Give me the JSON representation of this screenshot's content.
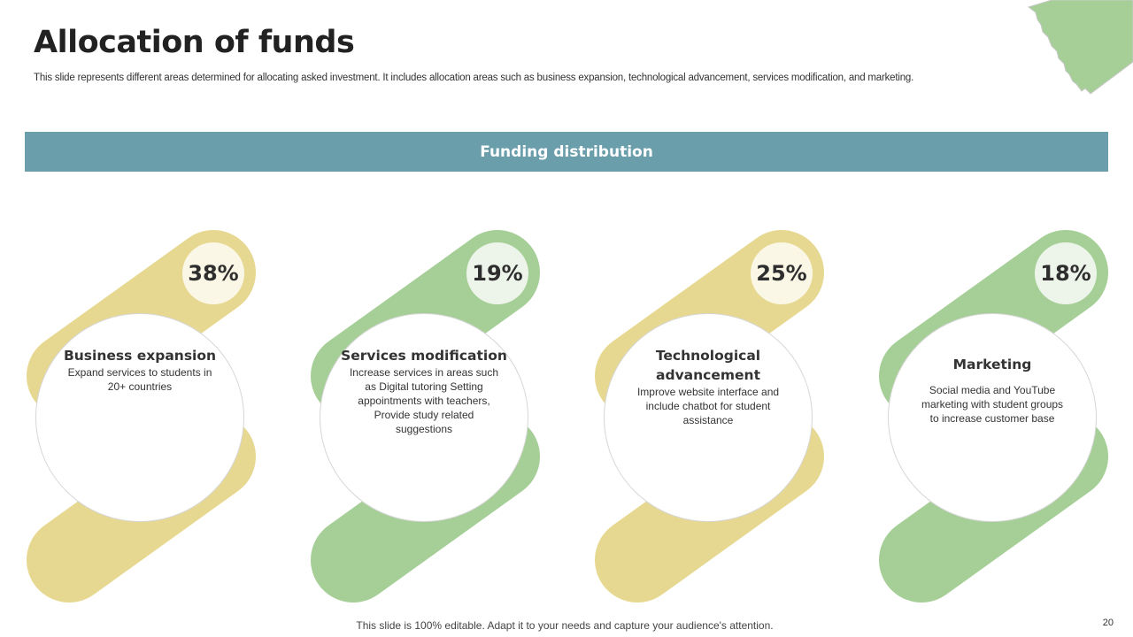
{
  "title": "Allocation of funds",
  "subtitle": "This slide represents different areas determined for allocating asked investment. It includes allocation areas such as business expansion, technological advancement, services modification, and marketing.",
  "banner": "Funding distribution",
  "colors": {
    "yellow": "#e7d891",
    "green": "#a6cf97",
    "yellow_badge": "#faf7e6",
    "green_badge": "#edf5ea",
    "banner": "#6b9eab"
  },
  "items": [
    {
      "percent": "38%",
      "title": "Business expansion",
      "desc": "Expand services to students in 20+ countries",
      "color": "yellow"
    },
    {
      "percent": "19%",
      "title": "Services modification",
      "desc": "Increase services in areas such as Digital tutoring Setting appointments with teachers, Provide study related suggestions",
      "color": "green"
    },
    {
      "percent": "25%",
      "title": "Technological advancement",
      "desc": "Improve website interface and include chatbot for student assistance",
      "color": "yellow"
    },
    {
      "percent": "18%",
      "title": "Marketing",
      "desc": "Social media and YouTube marketing with student groups to increase customer base",
      "color": "green"
    }
  ],
  "footer": "This slide is 100% editable. Adapt it to your needs and capture your audience's attention.",
  "page_number": "20"
}
